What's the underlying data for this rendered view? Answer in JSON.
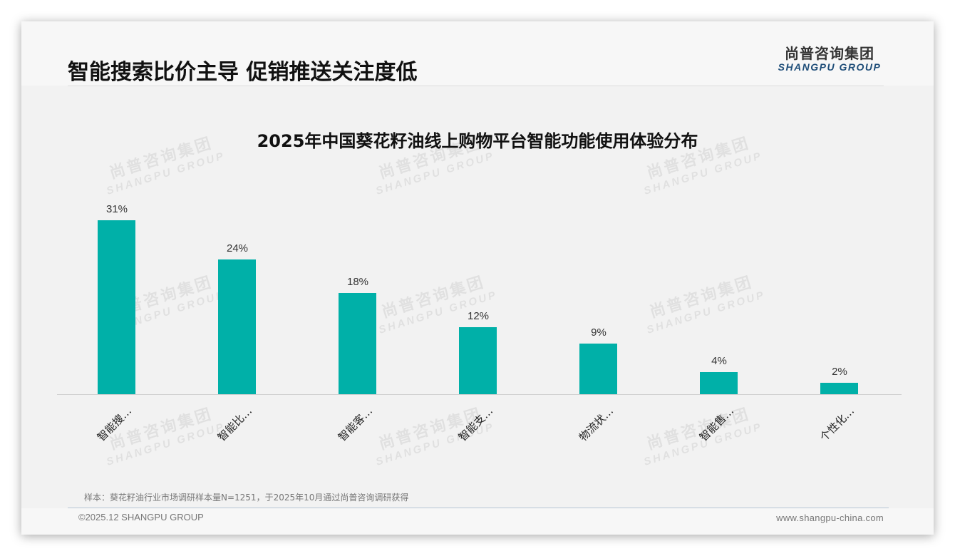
{
  "header": {
    "title": "智能搜索比价主导 促销推送关注度低",
    "logo_cn": "尚普咨询集团",
    "logo_en": "SHANGPU GROUP"
  },
  "watermark": {
    "cn": "尚普咨询集团",
    "en": "SHANGPU GROUP"
  },
  "colors": {
    "bar": "#00b0a8",
    "logo_en": "#1f4e79",
    "background": "#f2f2f2"
  },
  "chart_data": {
    "type": "bar",
    "title": "2025年中国葵花籽油线上购物平台智能功能使用体验分布",
    "categories": [
      "智能搜…",
      "智能比…",
      "智能客…",
      "智能支…",
      "物流状…",
      "智能售…",
      "个性化…"
    ],
    "values": [
      31,
      24,
      18,
      12,
      9,
      4,
      2
    ],
    "value_labels": [
      "31%",
      "24%",
      "18%",
      "12%",
      "9%",
      "4%",
      "2%"
    ],
    "unit": "%",
    "xlabel": "",
    "ylabel": "",
    "ylim": [
      0,
      35
    ],
    "grid": false,
    "legend": "none",
    "color": "#00b0a8"
  },
  "footer": {
    "note": "样本：葵花籽油行业市场调研样本量N=1251，于2025年10月通过尚普咨询调研获得",
    "copyright": "©2025.12 SHANGPU GROUP",
    "website": "www.shangpu-china.com"
  }
}
